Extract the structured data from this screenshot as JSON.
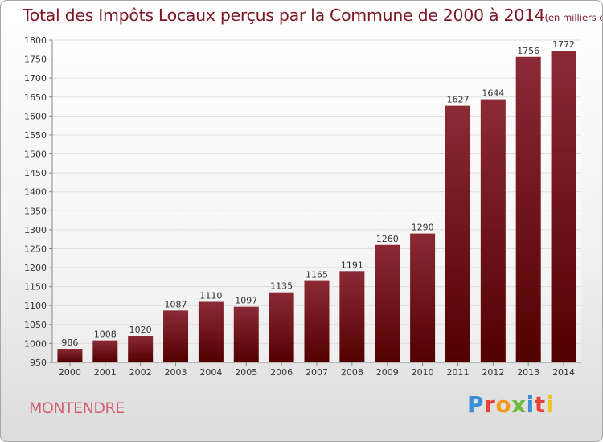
{
  "chart_data": {
    "type": "bar",
    "title": "Total des Impôts Locaux perçus par la Commune de 2000 à 2014",
    "subtitle": "(en milliers d'€)",
    "categories": [
      "2000",
      "2001",
      "2002",
      "2003",
      "2004",
      "2005",
      "2006",
      "2007",
      "2008",
      "2009",
      "2010",
      "2011",
      "2012",
      "2013",
      "2014"
    ],
    "values": [
      986,
      1008,
      1020,
      1087,
      1110,
      1097,
      1135,
      1165,
      1191,
      1260,
      1290,
      1627,
      1644,
      1756,
      1772
    ],
    "value_labels": [
      "986",
      "1008",
      "1020",
      "1087",
      "1110",
      "1097",
      "1135",
      "1165",
      "1191",
      "1260",
      "1290",
      "1627",
      "1644",
      "1756",
      "1772"
    ],
    "ylim": [
      950,
      1800
    ],
    "yticks": [
      950,
      1000,
      1050,
      1100,
      1150,
      1200,
      1250,
      1300,
      1350,
      1400,
      1450,
      1500,
      1550,
      1600,
      1650,
      1700,
      1750,
      1800
    ],
    "xlabel": "",
    "ylabel": "",
    "grid": "horizontal",
    "bar_color_top": "#8b2a35",
    "bar_color_bottom": "#520000"
  },
  "commune": "MONTENDRE",
  "brand": {
    "letters": [
      "P",
      "r",
      "o",
      "x",
      "i",
      "t",
      "i"
    ],
    "colors": [
      "#3a8fd8",
      "#e8433b",
      "#f29a1e",
      "#6dbb3a",
      "#3a8fd8",
      "#e8433b",
      "#f2c21e"
    ]
  }
}
